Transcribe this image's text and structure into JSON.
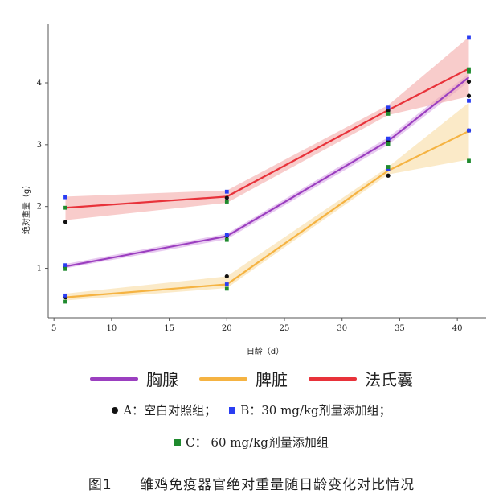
{
  "caption": {
    "number": "图1",
    "text": "雏鸡免疫器官绝对重量随日龄变化对比情况"
  },
  "chart_data": {
    "type": "line",
    "xlabel": "日龄（d）",
    "ylabel": "绝对重量（g）",
    "xlim": [
      4.5,
      42.5
    ],
    "ylim": [
      0.2,
      4.95
    ],
    "xticks": [
      5,
      10,
      15,
      20,
      25,
      30,
      35,
      40
    ],
    "yticks": [
      1,
      2,
      3,
      4
    ],
    "x": [
      6,
      20,
      34,
      41
    ],
    "series": [
      {
        "name": "胸腺",
        "color": "#9b3fc0",
        "band_color": "#d9a7e6",
        "mean": [
          1.03,
          1.52,
          3.06,
          4.09
        ],
        "lower": [
          1.0,
          1.47,
          3.0,
          4.02
        ],
        "upper": [
          1.07,
          1.56,
          3.12,
          4.15
        ],
        "points": {
          "A": [
            1.02,
            1.52,
            3.05,
            3.79
          ],
          "B": [
            1.05,
            1.54,
            3.1,
            3.71
          ],
          "C": [
            0.99,
            1.46,
            3.01,
            4.18
          ]
        }
      },
      {
        "name": "脾脏",
        "color": "#f5b342",
        "band_color": "#f8dca3",
        "mean": [
          0.53,
          0.74,
          2.58,
          3.22
        ],
        "lower": [
          0.48,
          0.68,
          2.52,
          2.76
        ],
        "upper": [
          0.59,
          0.87,
          2.64,
          3.68
        ],
        "points": {
          "A": [
            0.53,
            0.87,
            2.5,
            3.23
          ],
          "B": [
            0.56,
            0.74,
            2.6,
            3.23
          ],
          "C": [
            0.46,
            0.67,
            2.64,
            2.74
          ]
        }
      },
      {
        "name": "法氏囊",
        "color": "#e8323a",
        "band_color": "#f4aaa8",
        "mean": [
          1.98,
          2.16,
          3.56,
          4.23
        ],
        "lower": [
          1.78,
          2.06,
          3.48,
          3.78
        ],
        "upper": [
          2.16,
          2.26,
          3.64,
          4.74
        ],
        "points": {
          "A": [
            1.75,
            2.14,
            3.55,
            4.02
          ],
          "B": [
            2.15,
            2.24,
            3.6,
            4.73
          ],
          "C": [
            1.98,
            2.08,
            3.5,
            4.22
          ]
        }
      }
    ],
    "groups": [
      {
        "key": "A",
        "label": "A：空白对照组；",
        "color": "#111111",
        "marker": "circle"
      },
      {
        "key": "B",
        "label": "B：30 mg/kg剂量添加组；",
        "color": "#2a3df2",
        "marker": "square"
      },
      {
        "key": "C",
        "label": "C： 60 mg/kg剂量添加组",
        "color": "#1f8a2e",
        "marker": "square"
      }
    ]
  }
}
